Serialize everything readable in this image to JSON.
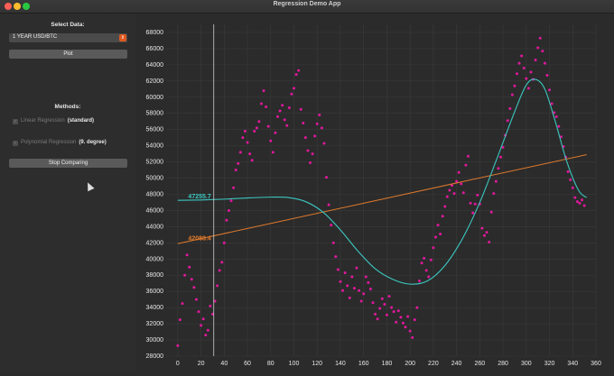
{
  "window": {
    "title": "Regression Demo App"
  },
  "sidebar": {
    "select_label": "Select Data:",
    "select_value": "1 YEAR USD/BTC",
    "plot_button": "Plot",
    "methods_label": "Methods:",
    "methods": [
      {
        "label": "Linear Regression",
        "suffix": "(standard)",
        "checked": true
      },
      {
        "label": "Polynomial Regression",
        "suffix": "(9. degree)",
        "checked": true
      }
    ],
    "compare_button": "Stop Comparing"
  },
  "colors": {
    "scatter": "#e0189c",
    "linear": "#e07a2c",
    "poly": "#3cc7c0",
    "cursor_line": "#cfcfcf"
  },
  "chart_data": {
    "type": "scatter",
    "xlim": [
      -10,
      360
    ],
    "ylim": [
      28000,
      69000
    ],
    "xticks": [
      0,
      20,
      40,
      60,
      80,
      100,
      120,
      140,
      160,
      180,
      200,
      220,
      240,
      260,
      280,
      300,
      320,
      340,
      360
    ],
    "yticks": [
      28000,
      30000,
      32000,
      34000,
      36000,
      38000,
      40000,
      42000,
      44000,
      46000,
      48000,
      50000,
      52000,
      54000,
      56000,
      58000,
      60000,
      62000,
      64000,
      66000,
      68000
    ],
    "cursor_x": 31,
    "annotations": [
      {
        "text": "47255.7",
        "series": "poly",
        "x": 31,
        "y": 47255.7
      },
      {
        "text": "42088.4",
        "series": "linear",
        "x": 31,
        "y": 42088.4
      }
    ],
    "linear": {
      "x0": 0,
      "y0": 41900,
      "x1": 352,
      "y1": 52900
    },
    "poly_points": [
      [
        0,
        47250
      ],
      [
        20,
        47300
      ],
      [
        40,
        47400
      ],
      [
        60,
        47550
      ],
      [
        80,
        47650
      ],
      [
        95,
        47600
      ],
      [
        110,
        47100
      ],
      [
        125,
        45800
      ],
      [
        140,
        43600
      ],
      [
        155,
        41000
      ],
      [
        170,
        38800
      ],
      [
        185,
        37500
      ],
      [
        200,
        36900
      ],
      [
        215,
        37300
      ],
      [
        230,
        39200
      ],
      [
        245,
        42500
      ],
      [
        260,
        47000
      ],
      [
        275,
        52500
      ],
      [
        290,
        58200
      ],
      [
        300,
        61500
      ],
      [
        308,
        62200
      ],
      [
        316,
        61000
      ],
      [
        325,
        57000
      ],
      [
        335,
        52000
      ],
      [
        345,
        48500
      ],
      [
        352,
        47600
      ]
    ],
    "scatter_points": [
      [
        0,
        29300
      ],
      [
        2,
        32500
      ],
      [
        4,
        34500
      ],
      [
        6,
        38000
      ],
      [
        8,
        40500
      ],
      [
        10,
        39000
      ],
      [
        12,
        37500
      ],
      [
        14,
        36500
      ],
      [
        16,
        35000
      ],
      [
        18,
        33500
      ],
      [
        20,
        31800
      ],
      [
        22,
        32600
      ],
      [
        24,
        30600
      ],
      [
        26,
        31200
      ],
      [
        28,
        34200
      ],
      [
        30,
        33200
      ],
      [
        32,
        34800
      ],
      [
        34,
        36700
      ],
      [
        36,
        38600
      ],
      [
        38,
        39600
      ],
      [
        40,
        42000
      ],
      [
        42,
        44800
      ],
      [
        44,
        46000
      ],
      [
        46,
        47200
      ],
      [
        48,
        48800
      ],
      [
        50,
        51000
      ],
      [
        52,
        51800
      ],
      [
        54,
        53200
      ],
      [
        56,
        55000
      ],
      [
        58,
        55800
      ],
      [
        60,
        54400
      ],
      [
        62,
        53000
      ],
      [
        64,
        52200
      ],
      [
        66,
        55800
      ],
      [
        68,
        56200
      ],
      [
        70,
        57000
      ],
      [
        72,
        59200
      ],
      [
        74,
        60800
      ],
      [
        76,
        58800
      ],
      [
        78,
        56400
      ],
      [
        80,
        54600
      ],
      [
        82,
        53200
      ],
      [
        84,
        55600
      ],
      [
        86,
        57600
      ],
      [
        88,
        58300
      ],
      [
        90,
        59000
      ],
      [
        92,
        57200
      ],
      [
        94,
        56500
      ],
      [
        96,
        58700
      ],
      [
        98,
        60400
      ],
      [
        100,
        61100
      ],
      [
        102,
        62800
      ],
      [
        104,
        63300
      ],
      [
        106,
        58500
      ],
      [
        108,
        56800
      ],
      [
        110,
        55000
      ],
      [
        112,
        53400
      ],
      [
        114,
        51900
      ],
      [
        116,
        53000
      ],
      [
        118,
        55200
      ],
      [
        120,
        56700
      ],
      [
        122,
        57800
      ],
      [
        124,
        56200
      ],
      [
        126,
        54300
      ],
      [
        128,
        50100
      ],
      [
        130,
        46700
      ],
      [
        132,
        44200
      ],
      [
        134,
        42000
      ],
      [
        136,
        40300
      ],
      [
        138,
        38700
      ],
      [
        140,
        37200
      ],
      [
        142,
        36100
      ],
      [
        144,
        38300
      ],
      [
        146,
        36700
      ],
      [
        148,
        35200
      ],
      [
        150,
        37800
      ],
      [
        152,
        36400
      ],
      [
        154,
        38900
      ],
      [
        156,
        36100
      ],
      [
        158,
        34800
      ],
      [
        160,
        35700
      ],
      [
        162,
        37800
      ],
      [
        164,
        37100
      ],
      [
        166,
        36300
      ],
      [
        168,
        34600
      ],
      [
        170,
        33200
      ],
      [
        172,
        32600
      ],
      [
        174,
        33900
      ],
      [
        176,
        35100
      ],
      [
        178,
        34400
      ],
      [
        180,
        33100
      ],
      [
        182,
        35400
      ],
      [
        184,
        34000
      ],
      [
        186,
        33500
      ],
      [
        188,
        32200
      ],
      [
        190,
        33600
      ],
      [
        192,
        32800
      ],
      [
        194,
        32100
      ],
      [
        196,
        31600
      ],
      [
        198,
        32900
      ],
      [
        200,
        31100
      ],
      [
        202,
        30300
      ],
      [
        204,
        32500
      ],
      [
        206,
        34000
      ],
      [
        208,
        37300
      ],
      [
        210,
        39500
      ],
      [
        212,
        40100
      ],
      [
        214,
        38600
      ],
      [
        216,
        37800
      ],
      [
        218,
        39900
      ],
      [
        220,
        41400
      ],
      [
        222,
        42700
      ],
      [
        224,
        44200
      ],
      [
        226,
        43100
      ],
      [
        228,
        45300
      ],
      [
        230,
        46500
      ],
      [
        232,
        47700
      ],
      [
        234,
        48500
      ],
      [
        236,
        49100
      ],
      [
        238,
        48100
      ],
      [
        240,
        49600
      ],
      [
        242,
        50700
      ],
      [
        244,
        49300
      ],
      [
        246,
        48200
      ],
      [
        248,
        51600
      ],
      [
        250,
        52700
      ],
      [
        252,
        46900
      ],
      [
        254,
        45700
      ],
      [
        256,
        46800
      ],
      [
        258,
        47900
      ],
      [
        260,
        46800
      ],
      [
        262,
        43800
      ],
      [
        264,
        42900
      ],
      [
        266,
        43300
      ],
      [
        268,
        42100
      ],
      [
        270,
        45800
      ],
      [
        272,
        48100
      ],
      [
        274,
        49600
      ],
      [
        276,
        51200
      ],
      [
        278,
        52600
      ],
      [
        280,
        53800
      ],
      [
        282,
        55300
      ],
      [
        284,
        57100
      ],
      [
        286,
        58600
      ],
      [
        288,
        60300
      ],
      [
        290,
        61400
      ],
      [
        292,
        62900
      ],
      [
        294,
        64200
      ],
      [
        296,
        65100
      ],
      [
        298,
        63600
      ],
      [
        300,
        62300
      ],
      [
        302,
        61100
      ],
      [
        304,
        63100
      ],
      [
        306,
        62200
      ],
      [
        308,
        64600
      ],
      [
        310,
        66100
      ],
      [
        312,
        67300
      ],
      [
        314,
        65700
      ],
      [
        316,
        64200
      ],
      [
        318,
        62700
      ],
      [
        320,
        60900
      ],
      [
        322,
        59200
      ],
      [
        324,
        58100
      ],
      [
        326,
        57600
      ],
      [
        328,
        56400
      ],
      [
        330,
        55100
      ],
      [
        332,
        53900
      ],
      [
        334,
        52600
      ],
      [
        336,
        50800
      ],
      [
        338,
        49800
      ],
      [
        340,
        48800
      ],
      [
        342,
        47600
      ],
      [
        344,
        47100
      ],
      [
        346,
        46900
      ],
      [
        348,
        47300
      ],
      [
        350,
        46600
      ]
    ]
  }
}
